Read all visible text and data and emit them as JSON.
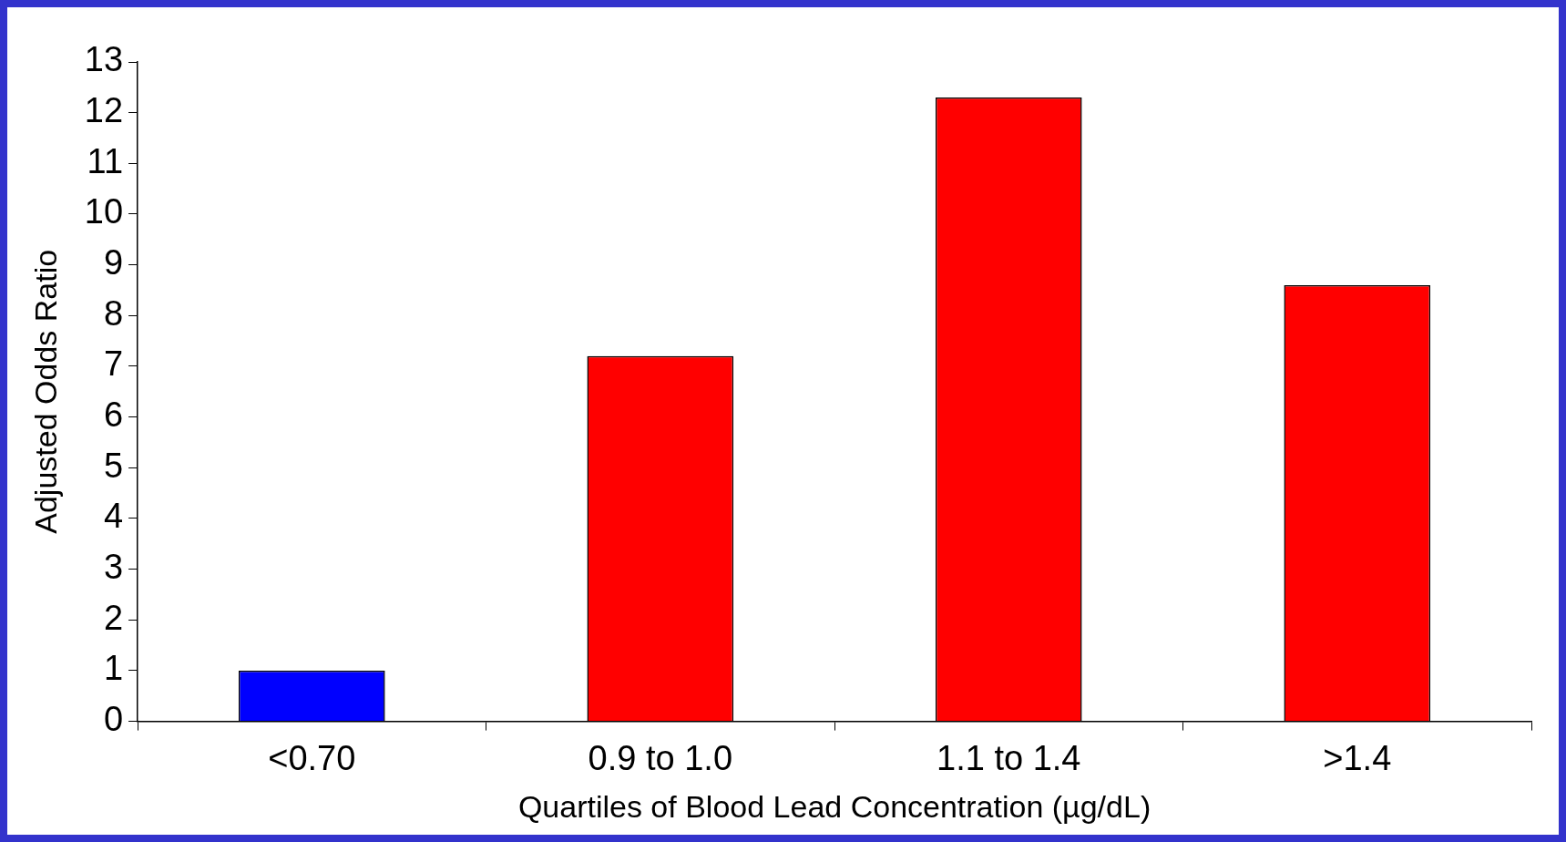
{
  "chart_data": {
    "type": "bar",
    "xlabel": "Quartiles of Blood Lead Concentration (µg/dL)",
    "ylabel": "Adjusted Odds Ratio",
    "categories": [
      "<0.70",
      "0.9 to 1.0",
      "1.1 to 1.4",
      ">1.4"
    ],
    "values": [
      1.0,
      7.2,
      12.3,
      8.6
    ],
    "colors": [
      "#0000ff",
      "#ff0000",
      "#ff0000",
      "#ff0000"
    ],
    "ylim": [
      0,
      13
    ],
    "yticks": [
      0,
      1,
      2,
      3,
      4,
      5,
      6,
      7,
      8,
      9,
      10,
      11,
      12,
      13
    ],
    "grid": false,
    "legend": false
  }
}
